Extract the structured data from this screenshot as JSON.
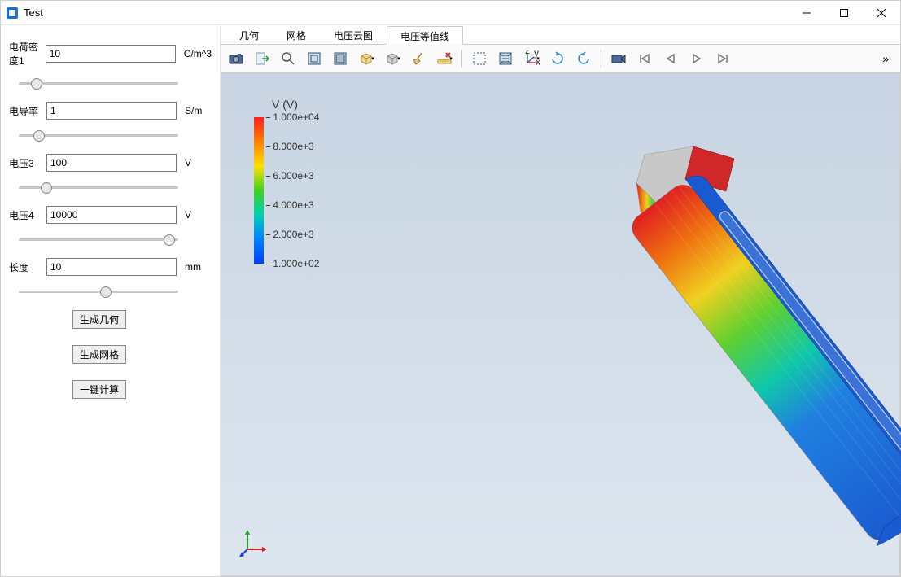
{
  "window": {
    "title": "Test"
  },
  "params": [
    {
      "label": "电荷密度1",
      "value": "10",
      "unit": "C/m^3",
      "sliderPos": 8
    },
    {
      "label": "电导率",
      "value": "1",
      "unit": "S/m",
      "sliderPos": 10
    },
    {
      "label": "电压3",
      "value": "100",
      "unit": "V",
      "sliderPos": 15
    },
    {
      "label": "电压4",
      "value": "10000",
      "unit": "V",
      "sliderPos": 98
    },
    {
      "label": "长度",
      "value": "10",
      "unit": "mm",
      "sliderPos": 55
    }
  ],
  "buttons": {
    "gen_geom": "生成几何",
    "gen_mesh": "生成网格",
    "one_click": "一键计算"
  },
  "tabs": [
    {
      "label": "几何",
      "active": false
    },
    {
      "label": "网格",
      "active": false
    },
    {
      "label": "电压云图",
      "active": false
    },
    {
      "label": "电压等值线",
      "active": true
    }
  ],
  "legend": {
    "title": "V (V)",
    "ticks": [
      {
        "label": "1.000e+04",
        "pos_pct": 0
      },
      {
        "label": "8.000e+3",
        "pos_pct": 20
      },
      {
        "label": "6.000e+3",
        "pos_pct": 40
      },
      {
        "label": "4.000e+3",
        "pos_pct": 60
      },
      {
        "label": "2.000e+3",
        "pos_pct": 80
      },
      {
        "label": "1.000e+02",
        "pos_pct": 100
      }
    ],
    "colors": [
      "#ff2020",
      "#ff8000",
      "#ffe000",
      "#40d020",
      "#00d0b0",
      "#0080ff",
      "#0040ff"
    ]
  },
  "viewport": {
    "bg_top": "#c8d4e2",
    "bg_bottom": "#dde6ef"
  },
  "toolbar_icons": [
    "camera",
    "export",
    "zoom",
    "zoom-box",
    "zoom-extent",
    "cube",
    "cube-face",
    "broom",
    "ruler",
    "select-box",
    "select-all",
    "axes",
    "rotate-cw",
    "rotate-ccw",
    "movie",
    "first",
    "prev",
    "play",
    "next"
  ]
}
